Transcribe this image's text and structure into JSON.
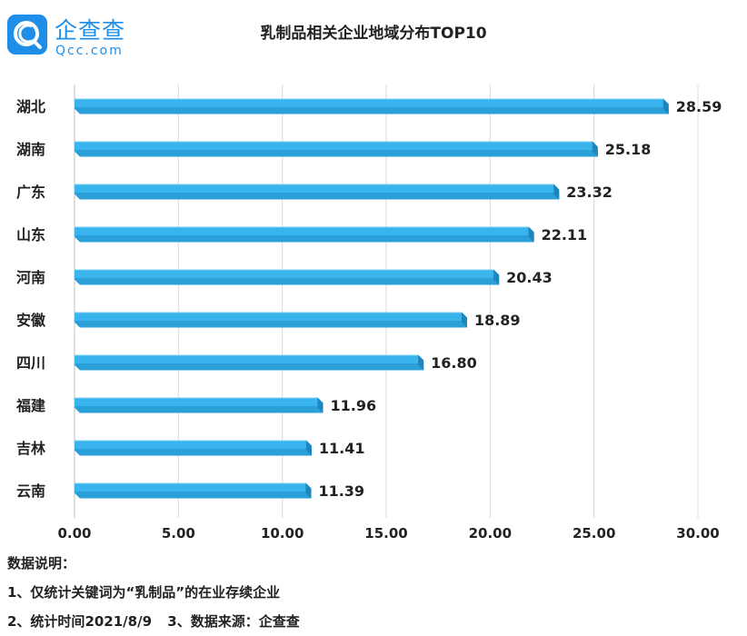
{
  "logo": {
    "cn": "企查查",
    "en": "Qcc.com",
    "icon": "qcc-magnifier-icon",
    "brand_color": "#1e8ee8"
  },
  "chart_data": {
    "type": "bar",
    "orientation": "horizontal",
    "title": "乳制品相关企业地域分布TOP10",
    "categories": [
      "湖北",
      "湖南",
      "广东",
      "山东",
      "河南",
      "安徽",
      "四川",
      "福建",
      "吉林",
      "云南"
    ],
    "values": [
      28.59,
      25.18,
      23.32,
      22.11,
      20.43,
      18.89,
      16.8,
      11.96,
      11.41,
      11.39
    ],
    "value_labels": [
      "28.59",
      "25.18",
      "23.32",
      "22.11",
      "20.43",
      "18.89",
      "16.80",
      "11.96",
      "11.41",
      "11.39"
    ],
    "xlim": [
      0,
      30
    ],
    "xticks": [
      "0.00",
      "5.00",
      "10.00",
      "15.00",
      "20.00",
      "25.00",
      "30.00"
    ],
    "grid": true,
    "bar_color": "#3ab4ec",
    "xlabel": "",
    "ylabel": ""
  },
  "notes": {
    "heading": "数据说明：",
    "line1": "1、仅统计关键词为“乳制品”的在业存续企业",
    "line2_a": "2、统计时间2021/8/9",
    "line2_b": "3、数据来源：企查查"
  }
}
